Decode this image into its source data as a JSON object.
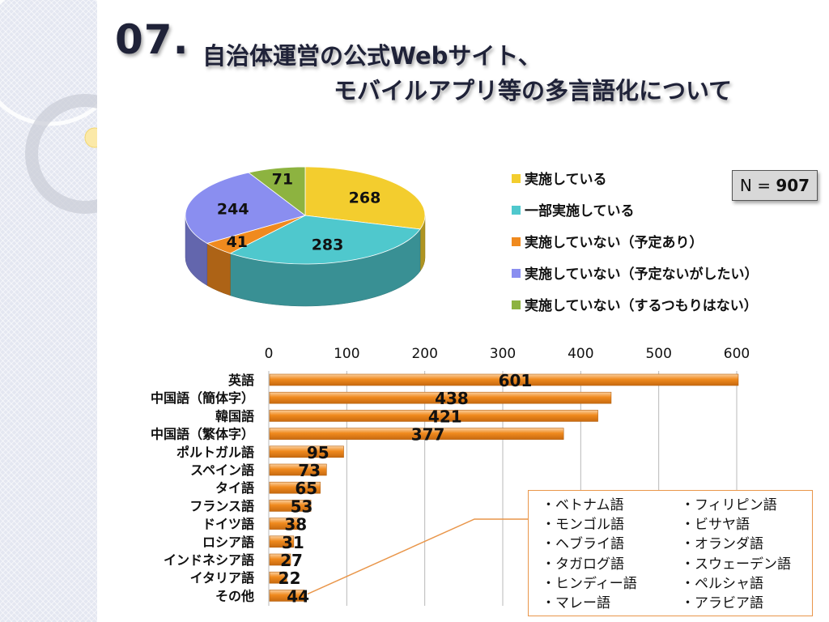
{
  "title": {
    "number": "07.",
    "line1": "自治体運営の公式Webサイト、",
    "line2": "モバイルアプリ等の多言語化について"
  },
  "sample": {
    "label": "N = ",
    "value": "907"
  },
  "chart_data": [
    {
      "type": "pie",
      "title": "",
      "labels": [
        "実施している",
        "一部実施している",
        "実施していない（予定あり）",
        "実施していない（予定ないがしたい）",
        "実施していない（するつもりはない）"
      ],
      "values": [
        268,
        283,
        41,
        244,
        71
      ],
      "colors": [
        "#f3cd2e",
        "#4fc8cd",
        "#f08a1e",
        "#8a8ef0",
        "#8db340"
      ],
      "legend_position": "right",
      "style": "3d"
    },
    {
      "type": "bar",
      "orientation": "horizontal",
      "title": "",
      "categories": [
        "英語",
        "中国語（簡体字）",
        "韓国語",
        "中国語（繁体字）",
        "ポルトガル語",
        "スペイン語",
        "タイ語",
        "フランス語",
        "ドイツ語",
        "ロシア語",
        "インドネシア語",
        "イタリア語",
        "その他"
      ],
      "values": [
        601,
        438,
        421,
        377,
        95,
        73,
        65,
        53,
        38,
        31,
        27,
        22,
        44
      ],
      "xlim": [
        0,
        600
      ],
      "ticks": [
        "0",
        "100",
        "200",
        "300",
        "400",
        "500",
        "600"
      ],
      "grid": true,
      "bar_color": "#f08a1e"
    }
  ],
  "callout": {
    "left": [
      "・ベトナム語",
      "・モンゴル語",
      "・ヘブライ語",
      "・タガログ語",
      "・ヒンディー語",
      "・マレー語"
    ],
    "right": [
      "・フィリピン語",
      "・ビサヤ語",
      "・オランダ語",
      "・スウェーデン語",
      "・ペルシャ語",
      "・アラビア語"
    ]
  }
}
